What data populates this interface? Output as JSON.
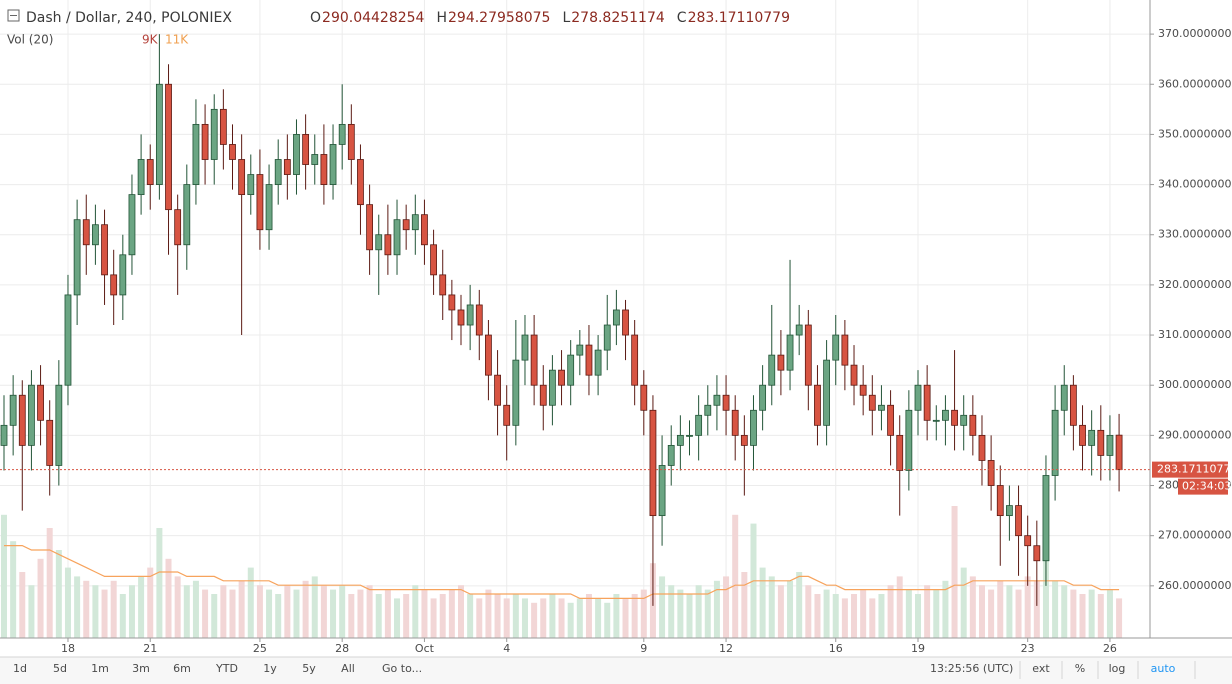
{
  "chart_data": {
    "type": "candlestick",
    "title": "Dash / Dollar, 240, POLONIEX",
    "ohlc_labels": [
      "O",
      "H",
      "L",
      "C"
    ],
    "legend": {
      "volume_name": "Vol (20)",
      "volume": "9K",
      "volume_ma": "11K"
    },
    "countdown": "02:34:03",
    "categories": [
      null,
      null,
      null,
      null,
      null,
      null,
      null,
      "18",
      null,
      null,
      null,
      null,
      null,
      null,
      null,
      null,
      "21",
      null,
      null,
      null,
      null,
      null,
      null,
      null,
      null,
      null,
      null,
      null,
      "25",
      null,
      null,
      null,
      null,
      null,
      null,
      null,
      null,
      "28",
      null,
      null,
      null,
      null,
      null,
      null,
      null,
      null,
      "Oct",
      null,
      null,
      null,
      null,
      null,
      null,
      null,
      null,
      "4",
      null,
      null,
      null,
      null,
      null,
      null,
      null,
      null,
      null,
      null,
      null,
      null,
      null,
      null,
      "9",
      null,
      null,
      null,
      null,
      null,
      null,
      null,
      null,
      "12",
      null,
      null,
      null,
      null,
      null,
      null,
      null,
      null,
      null,
      null,
      null,
      "16",
      null,
      null,
      null,
      null,
      null,
      null,
      null,
      null,
      "19",
      null,
      null,
      null,
      null,
      null,
      null,
      null,
      null,
      null,
      null,
      null,
      "23",
      null,
      null,
      null,
      null,
      null,
      null,
      null,
      null,
      "26",
      null
    ],
    "open": [
      288,
      292,
      298,
      288,
      300,
      293,
      284,
      300,
      318,
      333,
      328,
      332,
      322,
      318,
      326,
      338,
      345,
      340,
      360,
      335,
      328,
      340,
      352,
      345,
      355,
      348,
      345,
      338,
      342,
      331,
      340,
      345,
      342,
      350,
      344,
      346,
      340,
      348,
      352,
      345,
      336,
      327,
      330,
      326,
      333,
      331,
      334,
      328,
      322,
      318,
      315,
      312,
      316,
      310,
      302,
      296,
      292,
      305,
      310,
      300,
      296,
      303,
      300,
      306,
      308,
      302,
      307,
      312,
      315,
      310,
      300,
      295,
      274,
      284,
      288,
      290,
      290,
      294,
      296,
      298,
      295,
      290,
      288,
      295,
      300,
      306,
      303,
      310,
      312,
      300,
      292,
      305,
      310,
      304,
      300,
      298,
      295,
      296,
      290,
      283,
      295,
      300,
      293,
      293,
      295,
      292,
      294,
      290,
      285,
      280,
      274,
      276,
      270,
      268,
      265,
      282,
      295,
      300,
      292,
      288,
      291,
      286,
      290.04428254
    ],
    "high": [
      298,
      302,
      301,
      303,
      304,
      297,
      305,
      322,
      337,
      338,
      336,
      335,
      327,
      330,
      342,
      350,
      348,
      370,
      364,
      338,
      344,
      357,
      356,
      358,
      359,
      352,
      350,
      346,
      347,
      344,
      349,
      350,
      353,
      354,
      350,
      352,
      352,
      360,
      356,
      348,
      340,
      334,
      336,
      337,
      336,
      338,
      337,
      331,
      327,
      321,
      318,
      320,
      319,
      313,
      307,
      300,
      313,
      314,
      314,
      304,
      306,
      307,
      309,
      311,
      312,
      310,
      318,
      319,
      317,
      313,
      303,
      298,
      290,
      292,
      294,
      293,
      298,
      300,
      302,
      302,
      298,
      294,
      298,
      304,
      316,
      311,
      325,
      316,
      315,
      304,
      309,
      314,
      313,
      308,
      304,
      302,
      300,
      299,
      294,
      299,
      303,
      304,
      296,
      298,
      307,
      298,
      298,
      294,
      290,
      284,
      280,
      280,
      274,
      273,
      286,
      300,
      304,
      302,
      296,
      295,
      296,
      294,
      294.27958075
    ],
    "low": [
      283,
      286,
      275,
      283,
      288,
      278,
      280,
      296,
      312,
      322,
      324,
      316,
      312,
      313,
      322,
      334,
      335,
      337,
      326,
      318,
      323,
      336,
      340,
      340,
      343,
      339,
      310,
      334,
      327,
      327,
      336,
      337,
      338,
      339,
      340,
      336,
      337,
      343,
      340,
      330,
      322,
      318,
      322,
      322,
      327,
      326,
      324,
      318,
      313,
      309,
      308,
      307,
      305,
      297,
      290,
      285,
      288,
      300,
      296,
      291,
      292,
      296,
      296,
      302,
      298,
      298,
      303,
      308,
      305,
      296,
      290,
      256,
      268,
      280,
      283,
      286,
      285,
      290,
      291,
      290,
      285,
      278,
      283,
      291,
      296,
      298,
      299,
      306,
      295,
      288,
      288,
      300,
      299,
      296,
      294,
      290,
      291,
      284,
      274,
      279,
      290,
      289,
      289,
      288,
      287,
      287,
      286,
      280,
      275,
      264,
      269,
      262,
      260,
      256,
      260,
      277,
      290,
      287,
      283,
      282,
      281,
      281,
      278.8251174
    ],
    "close": [
      292,
      298,
      288,
      300,
      293,
      284,
      300,
      318,
      333,
      328,
      332,
      322,
      318,
      326,
      338,
      345,
      340,
      360,
      335,
      328,
      340,
      352,
      345,
      355,
      348,
      345,
      338,
      342,
      331,
      340,
      345,
      342,
      350,
      344,
      346,
      340,
      348,
      352,
      345,
      336,
      327,
      330,
      326,
      333,
      331,
      334,
      328,
      322,
      318,
      315,
      312,
      316,
      310,
      302,
      296,
      292,
      305,
      310,
      300,
      296,
      303,
      300,
      306,
      308,
      302,
      307,
      312,
      315,
      310,
      300,
      295,
      274,
      284,
      288,
      290,
      290,
      294,
      296,
      298,
      295,
      290,
      288,
      295,
      300,
      306,
      303,
      310,
      312,
      300,
      292,
      305,
      310,
      304,
      300,
      298,
      295,
      296,
      290,
      283,
      295,
      300,
      293,
      293,
      295,
      292,
      294,
      290,
      285,
      280,
      274,
      276,
      270,
      268,
      265,
      282,
      295,
      300,
      292,
      288,
      291,
      286,
      290,
      283.17110779
    ],
    "volume": [
      28,
      22,
      15,
      12,
      18,
      25,
      20,
      16,
      14,
      13,
      12,
      11,
      13,
      10,
      12,
      14,
      16,
      25,
      18,
      14,
      12,
      13,
      11,
      10,
      12,
      11,
      13,
      16,
      12,
      11,
      10,
      12,
      11,
      13,
      14,
      12,
      11,
      12,
      10,
      11,
      12,
      10,
      11,
      9,
      10,
      12,
      11,
      9,
      10,
      11,
      12,
      10,
      9,
      11,
      10,
      9,
      10,
      9,
      8,
      9,
      10,
      9,
      8,
      9,
      10,
      9,
      8,
      10,
      9,
      10,
      11,
      17,
      14,
      12,
      11,
      10,
      12,
      11,
      13,
      14,
      28,
      15,
      26,
      16,
      14,
      12,
      13,
      15,
      12,
      10,
      11,
      10,
      9,
      10,
      11,
      9,
      10,
      12,
      14,
      11,
      10,
      12,
      11,
      13,
      30,
      16,
      14,
      12,
      11,
      13,
      12,
      11,
      14,
      13,
      22,
      13,
      12,
      11,
      10,
      11,
      10,
      11,
      9
    ],
    "volume_ma": [
      21,
      21,
      21,
      20,
      20,
      20,
      19,
      18,
      17,
      16,
      15,
      14,
      14,
      14,
      14,
      14,
      14,
      15,
      15,
      15,
      14,
      14,
      14,
      14,
      13,
      13,
      13,
      13,
      13,
      13,
      12,
      12,
      12,
      12,
      12,
      12,
      12,
      12,
      12,
      12,
      11,
      11,
      11,
      11,
      11,
      11,
      11,
      11,
      11,
      11,
      11,
      10,
      10,
      10,
      10,
      10,
      10,
      10,
      10,
      10,
      10,
      10,
      10,
      9,
      9,
      9,
      9,
      9,
      9,
      9,
      9,
      10,
      10,
      10,
      10,
      10,
      10,
      10,
      11,
      11,
      12,
      12,
      13,
      13,
      13,
      13,
      13,
      14,
      14,
      13,
      12,
      12,
      11,
      11,
      11,
      11,
      11,
      11,
      11,
      11,
      11,
      11,
      11,
      11,
      12,
      12,
      13,
      13,
      13,
      13,
      13,
      13,
      13,
      13,
      13,
      13,
      13,
      12,
      12,
      12,
      11,
      11,
      11
    ],
    "ylim": [
      249.6,
      376.8
    ],
    "yticks": [
      {
        "value": 260,
        "label": "260.00000000"
      },
      {
        "value": 270,
        "label": "270.00000000"
      },
      {
        "value": 280,
        "label": "280.00000000"
      },
      {
        "value": 290,
        "label": "290.00000000"
      },
      {
        "value": 300,
        "label": "300.00000000"
      },
      {
        "value": 310,
        "label": "310.00000000"
      },
      {
        "value": 320,
        "label": "320.00000000"
      },
      {
        "value": 330,
        "label": "330.00000000"
      },
      {
        "value": 340,
        "label": "340.00000000"
      },
      {
        "value": 350,
        "label": "350.00000000"
      },
      {
        "value": 360,
        "label": "360.00000000"
      },
      {
        "value": 370,
        "label": "370.00000000"
      }
    ],
    "grid": true,
    "up_color": "#6ba583",
    "up_border": "#225437",
    "down_color": "#d75442",
    "down_border": "#5b1a13",
    "up_volume_color": "#d2e8d9",
    "down_volume_color": "#f2d6d6",
    "volume_ma_color": "#f7a35c",
    "last_price_color": "#d75442"
  },
  "toolbar": {
    "ranges": [
      "1d",
      "5d",
      "1m",
      "3m",
      "6m",
      "YTD",
      "1y",
      "5y",
      "All"
    ],
    "goto": "Go to...",
    "time": "13:25:56 (UTC)",
    "options": [
      "ext",
      "%",
      "log",
      "auto"
    ]
  }
}
